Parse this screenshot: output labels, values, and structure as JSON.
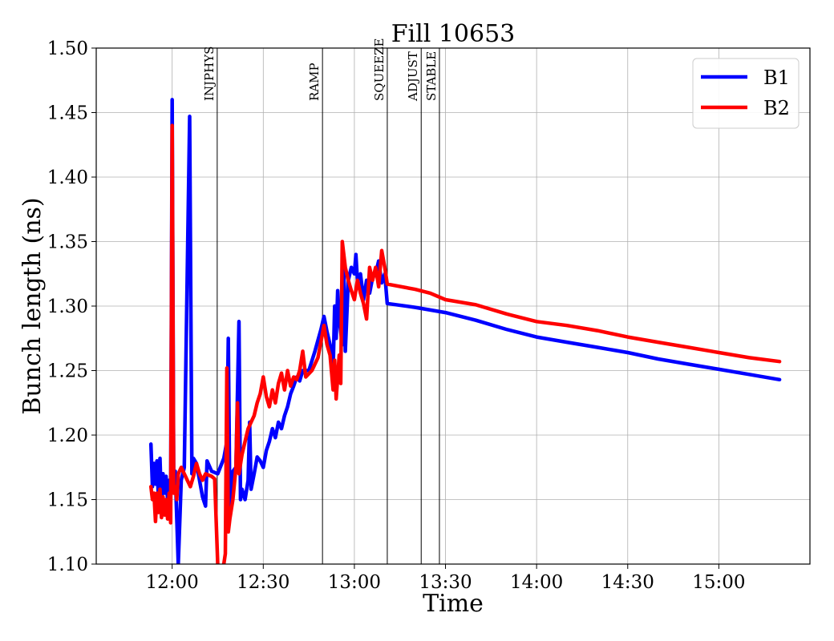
{
  "chart_data": {
    "type": "line",
    "title": "Fill 10653",
    "xlabel": "Time",
    "ylabel": "Bunch length (ns)",
    "x_unit": "time of day (HH:MM)",
    "xlim": [
      "11:35",
      "15:30"
    ],
    "ylim": [
      1.1,
      1.5
    ],
    "xticks": [
      "12:00",
      "12:30",
      "13:00",
      "13:30",
      "14:00",
      "14:30",
      "15:00"
    ],
    "yticks": [
      "1.10",
      "1.15",
      "1.20",
      "1.25",
      "1.30",
      "1.35",
      "1.40",
      "1.45",
      "1.50"
    ],
    "grid": true,
    "legend_position": "top-right",
    "mode_markers": [
      {
        "label": "INJPHYS",
        "time": "12:14:50"
      },
      {
        "label": "RAMP",
        "time": "12:49:30"
      },
      {
        "label": "SQUEEZE",
        "time": "13:10:50"
      },
      {
        "label": "ADJUST",
        "time": "13:22:00"
      },
      {
        "label": "STABLE",
        "time": "13:28:00"
      }
    ],
    "series": [
      {
        "name": "B1",
        "color": "#0000ff",
        "points": [
          [
            "11:53",
            1.193
          ],
          [
            "11:53:30",
            1.16
          ],
          [
            "11:54",
            1.178
          ],
          [
            "11:54:30",
            1.162
          ],
          [
            "11:55",
            1.18
          ],
          [
            "11:55:30",
            1.15
          ],
          [
            "11:56",
            1.182
          ],
          [
            "11:56:30",
            1.145
          ],
          [
            "11:57",
            1.17
          ],
          [
            "11:57:30",
            1.155
          ],
          [
            "11:58",
            1.168
          ],
          [
            "11:58:30",
            1.15
          ],
          [
            "11:59",
            1.165
          ],
          [
            "11:59:30",
            1.148
          ],
          [
            "12:00",
            1.46
          ],
          [
            "12:00:30",
            1.168
          ],
          [
            "12:01",
            1.172
          ],
          [
            "12:02",
            1.1
          ],
          [
            "12:03",
            1.165
          ],
          [
            "12:04",
            1.175
          ],
          [
            "12:05:45",
            1.447
          ],
          [
            "12:06:30",
            1.17
          ],
          [
            "12:07",
            1.182
          ],
          [
            "12:08",
            1.178
          ],
          [
            "12:09",
            1.165
          ],
          [
            "12:10",
            1.152
          ],
          [
            "12:11",
            1.145
          ],
          [
            "12:11:30",
            1.18
          ],
          [
            "12:13",
            1.172
          ],
          [
            "12:15",
            1.17
          ],
          [
            "12:17",
            1.182
          ],
          [
            "12:18",
            1.195
          ],
          [
            "12:18:30",
            1.275
          ],
          [
            "12:19",
            1.145
          ],
          [
            "12:19:30",
            1.16
          ],
          [
            "12:20",
            1.172
          ],
          [
            "12:21",
            1.175
          ],
          [
            "12:22",
            1.288
          ],
          [
            "12:22:30",
            1.15
          ],
          [
            "12:23",
            1.158
          ],
          [
            "12:24",
            1.15
          ],
          [
            "12:25",
            1.165
          ],
          [
            "12:25:30",
            1.21
          ],
          [
            "12:26",
            1.158
          ],
          [
            "12:27",
            1.17
          ],
          [
            "12:28",
            1.183
          ],
          [
            "12:29",
            1.18
          ],
          [
            "12:30",
            1.175
          ],
          [
            "12:31",
            1.188
          ],
          [
            "12:32",
            1.195
          ],
          [
            "12:33",
            1.205
          ],
          [
            "12:34",
            1.198
          ],
          [
            "12:35",
            1.21
          ],
          [
            "12:36",
            1.205
          ],
          [
            "12:37",
            1.215
          ],
          [
            "12:38",
            1.222
          ],
          [
            "12:39",
            1.232
          ],
          [
            "12:40",
            1.238
          ],
          [
            "12:41",
            1.245
          ],
          [
            "12:42",
            1.242
          ],
          [
            "12:43",
            1.25
          ],
          [
            "12:45",
            1.25
          ],
          [
            "12:47",
            1.265
          ],
          [
            "12:49",
            1.282
          ],
          [
            "12:50",
            1.292
          ],
          [
            "12:51",
            1.28
          ],
          [
            "12:52",
            1.27
          ],
          [
            "12:53",
            1.25
          ],
          [
            "12:53:30",
            1.3
          ],
          [
            "12:54",
            1.275
          ],
          [
            "12:54:30",
            1.312
          ],
          [
            "12:55",
            1.29
          ],
          [
            "12:56",
            1.27
          ],
          [
            "12:56:30",
            1.33
          ],
          [
            "12:57",
            1.265
          ],
          [
            "12:58",
            1.32
          ],
          [
            "12:59",
            1.33
          ],
          [
            "13:00",
            1.325
          ],
          [
            "13:00:30",
            1.34
          ],
          [
            "13:01",
            1.32
          ],
          [
            "13:02",
            1.325
          ],
          [
            "13:03",
            1.305
          ],
          [
            "13:04",
            1.32
          ],
          [
            "13:05",
            1.31
          ],
          [
            "13:06",
            1.322
          ],
          [
            "13:07",
            1.325
          ],
          [
            "13:08",
            1.335
          ],
          [
            "13:09",
            1.318
          ],
          [
            "13:10",
            1.325
          ],
          [
            "13:10:50",
            1.302
          ],
          [
            "13:20",
            1.299
          ],
          [
            "13:30",
            1.295
          ],
          [
            "13:40",
            1.289
          ],
          [
            "13:50",
            1.282
          ],
          [
            "14:00",
            1.276
          ],
          [
            "14:10",
            1.272
          ],
          [
            "14:20",
            1.268
          ],
          [
            "14:30",
            1.264
          ],
          [
            "14:40",
            1.259
          ],
          [
            "14:50",
            1.255
          ],
          [
            "15:00",
            1.251
          ],
          [
            "15:10",
            1.247
          ],
          [
            "15:20",
            1.243
          ]
        ]
      },
      {
        "name": "B2",
        "color": "#ff0000",
        "points": [
          [
            "11:53",
            1.16
          ],
          [
            "11:53:30",
            1.15
          ],
          [
            "11:54",
            1.155
          ],
          [
            "11:54:30",
            1.133
          ],
          [
            "11:55",
            1.155
          ],
          [
            "11:55:30",
            1.14
          ],
          [
            "11:56",
            1.158
          ],
          [
            "11:56:30",
            1.136
          ],
          [
            "11:57",
            1.152
          ],
          [
            "11:57:30",
            1.138
          ],
          [
            "11:58",
            1.15
          ],
          [
            "11:58:30",
            1.135
          ],
          [
            "11:59",
            1.155
          ],
          [
            "11:59:30",
            1.132
          ],
          [
            "12:00",
            1.44
          ],
          [
            "12:00:30",
            1.155
          ],
          [
            "12:01",
            1.16
          ],
          [
            "12:01:30",
            1.15
          ],
          [
            "12:02",
            1.17
          ],
          [
            "12:03",
            1.175
          ],
          [
            "12:04",
            1.17
          ],
          [
            "12:05",
            1.165
          ],
          [
            "12:06",
            1.16
          ],
          [
            "12:07",
            1.168
          ],
          [
            "12:08",
            1.178
          ],
          [
            "12:09",
            1.17
          ],
          [
            "12:10",
            1.165
          ],
          [
            "12:11",
            1.17
          ],
          [
            "12:13",
            1.168
          ],
          [
            "12:14",
            1.166
          ],
          [
            "12:15",
            1.1
          ],
          [
            "12:16",
            1.095
          ],
          [
            "12:17",
            1.1
          ],
          [
            "12:17:30",
            1.108
          ],
          [
            "12:18",
            1.252
          ],
          [
            "12:18:30",
            1.125
          ],
          [
            "12:19",
            1.135
          ],
          [
            "12:20",
            1.15
          ],
          [
            "12:21",
            1.175
          ],
          [
            "12:21:30",
            1.225
          ],
          [
            "12:22",
            1.17
          ],
          [
            "12:23",
            1.185
          ],
          [
            "12:24",
            1.195
          ],
          [
            "12:25",
            1.205
          ],
          [
            "12:26",
            1.21
          ],
          [
            "12:27",
            1.215
          ],
          [
            "12:28",
            1.225
          ],
          [
            "12:29",
            1.232
          ],
          [
            "12:30",
            1.245
          ],
          [
            "12:31",
            1.23
          ],
          [
            "12:32",
            1.222
          ],
          [
            "12:33",
            1.235
          ],
          [
            "12:34",
            1.225
          ],
          [
            "12:35",
            1.24
          ],
          [
            "12:36",
            1.248
          ],
          [
            "12:37",
            1.235
          ],
          [
            "12:38",
            1.25
          ],
          [
            "12:39",
            1.238
          ],
          [
            "12:40",
            1.245
          ],
          [
            "12:41",
            1.243
          ],
          [
            "12:42",
            1.25
          ],
          [
            "12:43",
            1.265
          ],
          [
            "12:44",
            1.245
          ],
          [
            "12:46",
            1.25
          ],
          [
            "12:48",
            1.26
          ],
          [
            "12:50",
            1.285
          ],
          [
            "12:51",
            1.27
          ],
          [
            "12:52",
            1.262
          ],
          [
            "12:53",
            1.235
          ],
          [
            "12:53:30",
            1.258
          ],
          [
            "12:54",
            1.228
          ],
          [
            "12:55",
            1.262
          ],
          [
            "12:55:30",
            1.24
          ],
          [
            "12:56",
            1.35
          ],
          [
            "12:57",
            1.33
          ],
          [
            "12:58",
            1.32
          ],
          [
            "12:59",
            1.312
          ],
          [
            "13:00",
            1.305
          ],
          [
            "13:01",
            1.32
          ],
          [
            "13:02",
            1.31
          ],
          [
            "13:03",
            1.302
          ],
          [
            "13:04",
            1.29
          ],
          [
            "13:05",
            1.33
          ],
          [
            "13:06",
            1.32
          ],
          [
            "13:07",
            1.33
          ],
          [
            "13:08",
            1.315
          ],
          [
            "13:09",
            1.343
          ],
          [
            "13:10",
            1.33
          ],
          [
            "13:10:50",
            1.317
          ],
          [
            "13:20",
            1.313
          ],
          [
            "13:25",
            1.31
          ],
          [
            "13:30",
            1.305
          ],
          [
            "13:40",
            1.301
          ],
          [
            "13:50",
            1.294
          ],
          [
            "14:00",
            1.288
          ],
          [
            "14:10",
            1.285
          ],
          [
            "14:20",
            1.281
          ],
          [
            "14:30",
            1.276
          ],
          [
            "14:40",
            1.272
          ],
          [
            "14:50",
            1.268
          ],
          [
            "15:00",
            1.264
          ],
          [
            "15:10",
            1.26
          ],
          [
            "15:20",
            1.257
          ]
        ]
      }
    ]
  }
}
